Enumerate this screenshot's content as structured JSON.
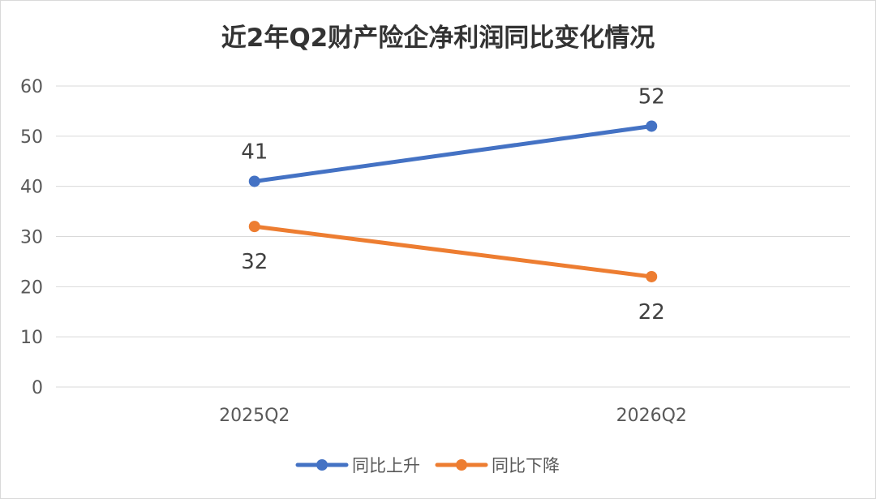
{
  "chart_data": {
    "type": "line",
    "title": "近2年Q2财产险企净利润同比变化情况",
    "xlabel": "",
    "ylabel": "",
    "categories": [
      "2025Q2",
      "2026Q2"
    ],
    "ylim": [
      0,
      60
    ],
    "yticks": [
      0,
      10,
      20,
      30,
      40,
      50,
      60
    ],
    "grid": true,
    "legend_position": "bottom",
    "series": [
      {
        "name": "同比上升",
        "values": [
          41,
          52
        ],
        "color": "#4472C4",
        "label_position": "above"
      },
      {
        "name": "同比下降",
        "values": [
          32,
          22
        ],
        "color": "#ED7D31",
        "label_position": "below"
      }
    ]
  }
}
